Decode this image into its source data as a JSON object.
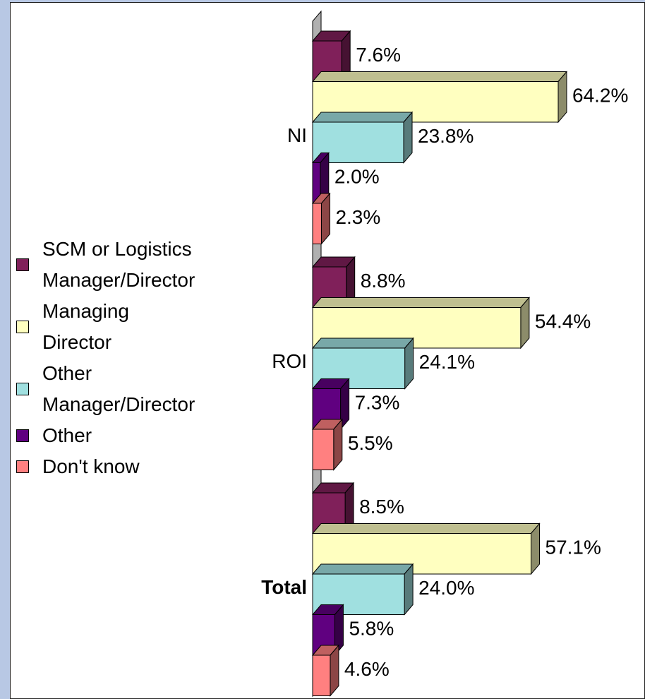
{
  "chart_data": {
    "type": "bar3d_horizontal",
    "categories": [
      "NI",
      "ROI",
      "Total"
    ],
    "series": [
      {
        "name": "SCM or Logistics Manager/Director",
        "color": "#80205a",
        "values": [
          7.6,
          8.8,
          8.5
        ],
        "value_labels": [
          "7.6%",
          "8.8%",
          "8.5%"
        ]
      },
      {
        "name": "Managing Director",
        "color": "#ffffc0",
        "values": [
          64.2,
          54.4,
          57.1
        ],
        "value_labels": [
          "64.2%",
          "54.4%",
          "57.1%"
        ]
      },
      {
        "name": "Other Manager/Director",
        "color": "#a0e0e0",
        "values": [
          23.8,
          24.1,
          24.0
        ],
        "value_labels": [
          "23.8%",
          "24.1%",
          "24.0%"
        ]
      },
      {
        "name": "Other",
        "color": "#600080",
        "values": [
          2.0,
          7.3,
          5.8
        ],
        "value_labels": [
          "2.0%",
          "7.3%",
          "5.8%"
        ]
      },
      {
        "name": "Don't know",
        "color": "#ff8080",
        "values": [
          2.3,
          5.5,
          4.6
        ],
        "value_labels": [
          "2.3%",
          "5.5%",
          "4.6%"
        ]
      }
    ],
    "legend": "left",
    "bold_categories": [
      "Total"
    ]
  }
}
